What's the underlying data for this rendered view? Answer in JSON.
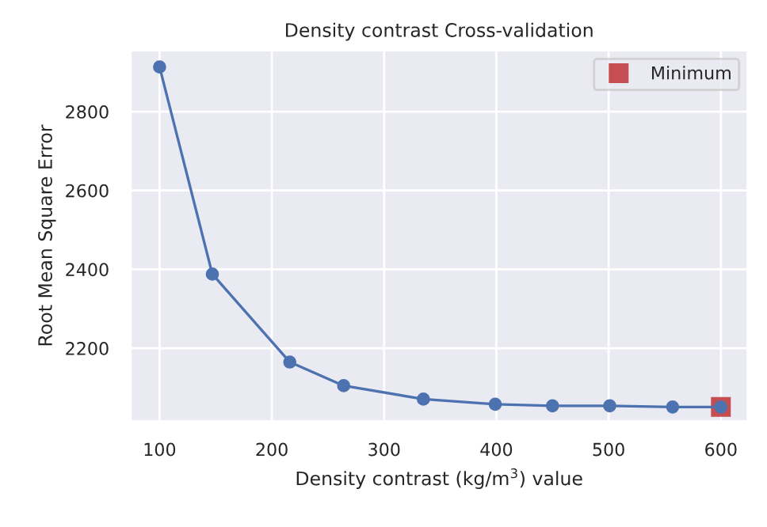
{
  "chart_data": {
    "type": "line",
    "title": "Density contrast Cross-validation",
    "xlabel": "Density contrast (kg/m$^{3}$) value",
    "ylabel": "Root Mean Square Error",
    "series": [
      {
        "color": "#4c72b0",
        "marker": "circle",
        "x": [
          100,
          147,
          216,
          264,
          335,
          399,
          450,
          501,
          557,
          600
        ],
        "values": [
          2913,
          2388,
          2165,
          2105,
          2071,
          2058,
          2054,
          2054,
          2051,
          2051
        ]
      },
      {
        "type": "scatter",
        "name": "Minimum",
        "color": "#c44e52",
        "marker": "square",
        "x": [
          600
        ],
        "values": [
          2051
        ]
      }
    ],
    "xlim": [
      74,
      624
    ],
    "xticks": [
      100,
      200,
      300,
      400,
      500,
      600
    ],
    "ylim": [
      2014,
      2956
    ],
    "yticks": [
      2200,
      2400,
      2600,
      2800
    ],
    "grid": true,
    "legend": "top right"
  }
}
